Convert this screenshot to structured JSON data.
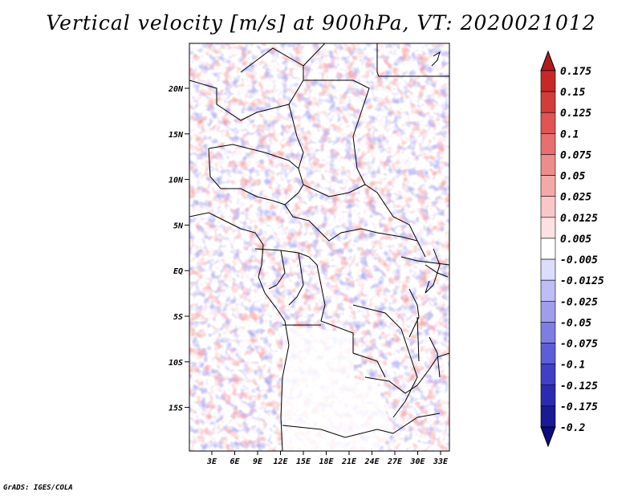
{
  "title": "Vertical velocity [m/s] at 900hPa, VT: 2020021012",
  "credit": "GrADS: IGES/COLA",
  "map": {
    "lat_labels": [
      "20N",
      "15N",
      "10N",
      "5N",
      "EQ",
      "5S",
      "10S",
      "15S"
    ],
    "lon_labels": [
      "3E",
      "6E",
      "9E",
      "12E",
      "15E",
      "18E",
      "21E",
      "24E",
      "27E",
      "30E",
      "33E"
    ]
  },
  "colorbar": {
    "levels": [
      "0.175",
      "0.15",
      "0.125",
      "0.1",
      "0.075",
      "0.05",
      "0.025",
      "0.0125",
      "0.005",
      "-0.005",
      "-0.0125",
      "-0.025",
      "-0.05",
      "-0.075",
      "-0.1",
      "-0.125",
      "-0.175",
      "-0.2"
    ],
    "colors": [
      "#b01c1c",
      "#c62828",
      "#d43c3c",
      "#e05454",
      "#e76f6f",
      "#ee8c8c",
      "#f4a9a9",
      "#f8c7c7",
      "#fbe1e1",
      "#ffffff",
      "#dcdcfb",
      "#bebef5",
      "#9e9eec",
      "#7e7ee2",
      "#5d5dd6",
      "#4040c6",
      "#2b2bb2",
      "#1a1a96",
      "#0c0c7c"
    ]
  }
}
